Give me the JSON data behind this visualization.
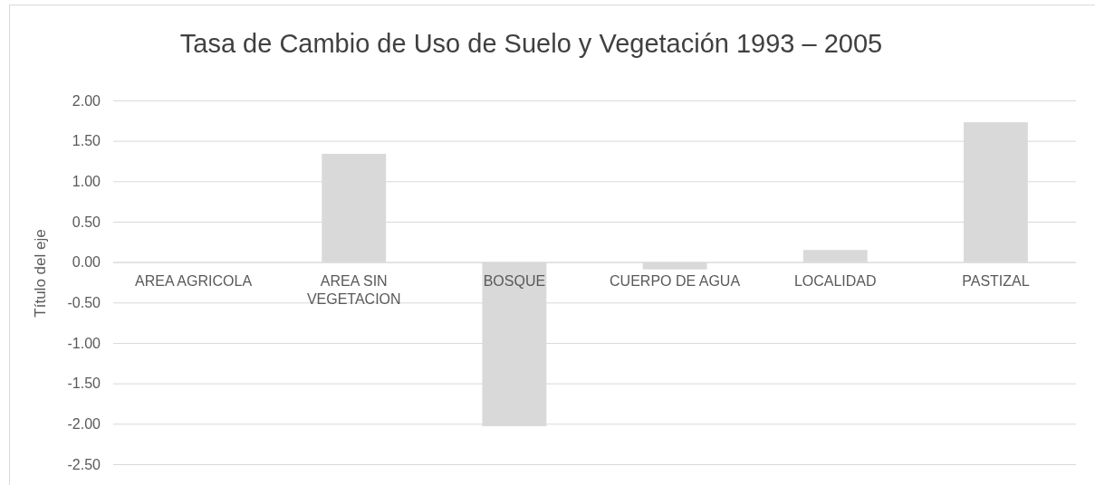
{
  "chart_data": {
    "type": "bar",
    "title": "Tasa de Cambio de Uso de Suelo y Vegetación 1993 – 2005",
    "ylabel": "Título del eje",
    "categories": [
      "AREA AGRICOLA",
      "AREA SIN VEGETACION",
      "BOSQUE",
      "CUERPO DE AGUA",
      "LOCALIDAD",
      "PASTIZAL"
    ],
    "values": [
      0,
      1.34,
      -2.03,
      -0.09,
      0.15,
      1.73
    ],
    "color": "#d9d9d9",
    "ylim": [
      -2.5,
      2
    ],
    "yticks": [
      {
        "value": -2.5,
        "label": "-2.50"
      },
      {
        "value": -2,
        "label": "-2.00"
      },
      {
        "value": -1.5,
        "label": "-1.50"
      },
      {
        "value": -1,
        "label": "-1.00"
      },
      {
        "value": -0.5,
        "label": "-0.50"
      },
      {
        "value": 0,
        "label": "0.00"
      },
      {
        "value": 0.5,
        "label": "0.50"
      },
      {
        "value": 1,
        "label": "1.00"
      },
      {
        "value": 1.5,
        "label": "1.50"
      },
      {
        "value": 2,
        "label": "2.00"
      }
    ],
    "grid": "y"
  }
}
